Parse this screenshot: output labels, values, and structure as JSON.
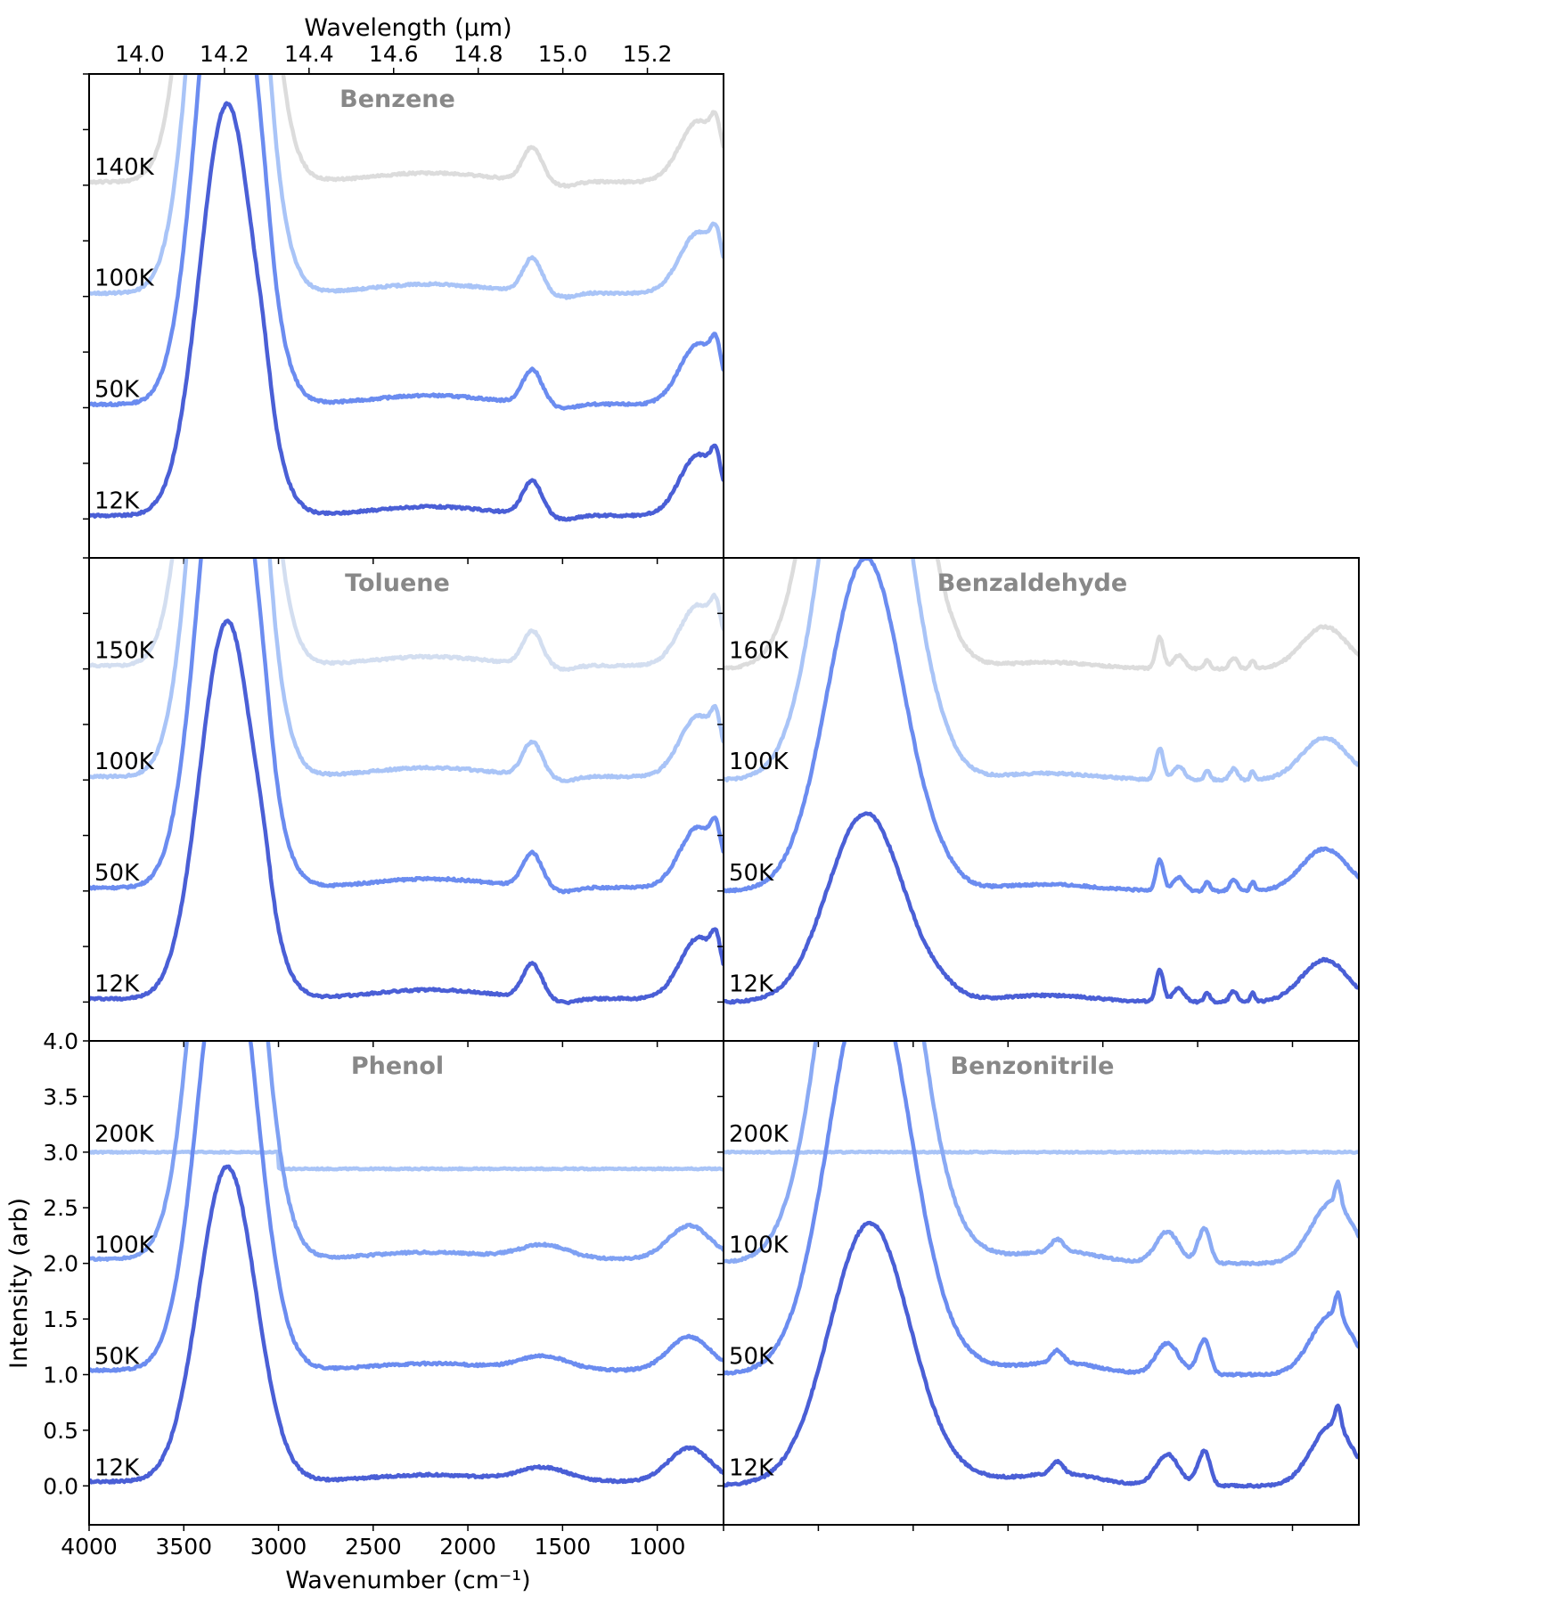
{
  "figure": {
    "top_axis_title": "Wavelength (μm)",
    "bottom_axis_title": "Wavenumber (cm⁻¹)",
    "y_axis_title": "Intensity (arb)"
  },
  "chart_data": [
    {
      "type": "line",
      "title": "Benzene",
      "xlabel": "Wavenumber (cm⁻¹)",
      "top_xlabel": "Wavelength (μm)",
      "top_ticks": [
        "14.0",
        "14.2",
        "14.4",
        "14.6",
        "14.8",
        "15.0",
        "15.2"
      ],
      "xlim": [
        4000,
        650
      ],
      "grid": false,
      "series": [
        {
          "name": "12K",
          "color": "#4a5fd6",
          "offset": 0
        },
        {
          "name": "50K",
          "color": "#6b8cf0",
          "offset": 1
        },
        {
          "name": "100K",
          "color": "#a9c4f7",
          "offset": 2
        },
        {
          "name": "140K",
          "color": "#dcdcdc",
          "offset": 3
        }
      ]
    },
    {
      "type": "line",
      "title": "Toluene",
      "xlim": [
        4000,
        650
      ],
      "grid": false,
      "series": [
        {
          "name": "12K",
          "color": "#4a5fd6",
          "offset": 0
        },
        {
          "name": "50K",
          "color": "#6b8cf0",
          "offset": 1
        },
        {
          "name": "100K",
          "color": "#a9c4f7",
          "offset": 2
        },
        {
          "name": "150K",
          "color": "#d3def0",
          "offset": 3
        }
      ]
    },
    {
      "type": "line",
      "title": "Benzaldehyde",
      "xlim": [
        4000,
        650
      ],
      "grid": false,
      "series": [
        {
          "name": "12K",
          "color": "#4a5fd6",
          "offset": 0
        },
        {
          "name": "50K",
          "color": "#6b8cf0",
          "offset": 1
        },
        {
          "name": "100K",
          "color": "#a9c4f7",
          "offset": 2
        },
        {
          "name": "160K",
          "color": "#dcdcdc",
          "offset": 3
        }
      ]
    },
    {
      "type": "line",
      "title": "Phenol",
      "xlabel": "Wavenumber (cm⁻¹)",
      "ylabel": "Intensity (arb)",
      "x_ticks": [
        4000,
        3500,
        3000,
        2500,
        2000,
        1500,
        1000
      ],
      "y_ticks": [
        0.0,
        0.5,
        1.0,
        1.5,
        2.0,
        2.5,
        3.0,
        3.5,
        4.0
      ],
      "ylim": [
        -0.35,
        4.0
      ],
      "xlim": [
        4000,
        650
      ],
      "grid": false,
      "series": [
        {
          "name": "12K",
          "color": "#4a5fd6",
          "offset": 0,
          "peak": 2.83
        },
        {
          "name": "50K",
          "color": "#6b8cf0",
          "offset": 1
        },
        {
          "name": "100K",
          "color": "#7ea0f3",
          "offset": 2
        },
        {
          "name": "200K",
          "color": "#a9c4f7",
          "offset": 3
        }
      ]
    },
    {
      "type": "line",
      "title": "Benzonitrile",
      "xlim": [
        4000,
        650
      ],
      "grid": false,
      "series": [
        {
          "name": "12K",
          "color": "#4a5fd6",
          "offset": 0
        },
        {
          "name": "50K",
          "color": "#6b8cf0",
          "offset": 1
        },
        {
          "name": "100K",
          "color": "#8aaaf4",
          "offset": 2
        },
        {
          "name": "200K",
          "color": "#a9c4f7",
          "offset": 3
        }
      ]
    }
  ]
}
